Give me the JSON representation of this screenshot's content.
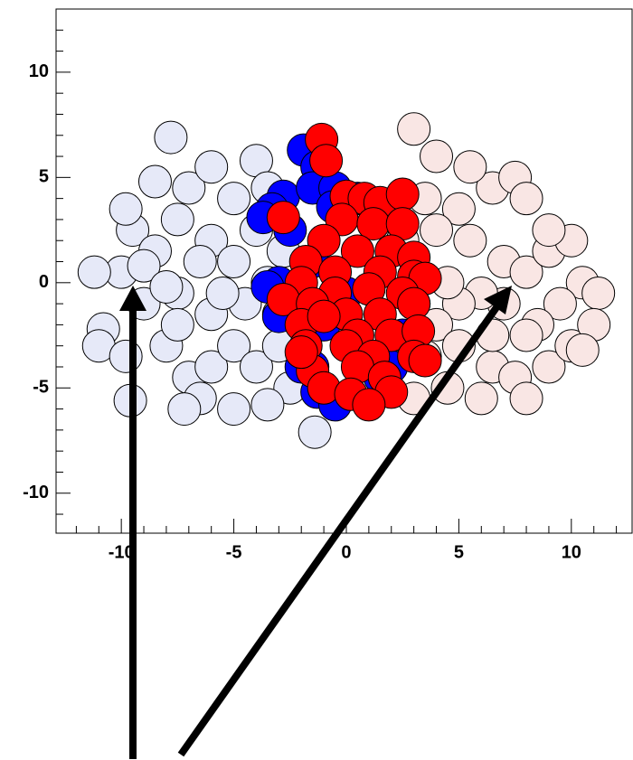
{
  "chart_data": {
    "type": "scatter",
    "xlim": [
      -12.9,
      12.7
    ],
    "ylim": [
      -11.9,
      13
    ],
    "xticks": [
      -10,
      -5,
      0,
      5,
      10
    ],
    "yticks": [
      -10,
      -5,
      0,
      5,
      10
    ],
    "xminorticks": [
      -12,
      -11,
      -9,
      -8,
      -7,
      -6,
      -4,
      -3,
      -2,
      -1,
      1,
      2,
      3,
      4,
      6,
      7,
      8,
      9,
      11,
      12
    ],
    "yminorticks": [
      -11,
      -9,
      -8,
      -7,
      -6,
      -4,
      -3,
      -2,
      -1,
      1,
      2,
      3,
      4,
      6,
      7,
      8,
      9,
      11,
      12
    ],
    "series": [
      {
        "color": "#e6e9f8",
        "x": [
          -9.5,
          -8.5,
          -7.5,
          -6,
          -5,
          -4,
          -3.5,
          -4.5,
          -6,
          -7.5,
          -9,
          -10,
          -11.2,
          -10.8,
          -11,
          -9.8,
          -8,
          -7,
          -7.5,
          -6,
          -5,
          -4,
          -3,
          -2.5,
          -3.5,
          -5,
          -6.5,
          -7.2,
          -9.6,
          -8.5,
          -7,
          -6,
          -5,
          -4,
          -3.5,
          -7.8,
          -9,
          -8,
          -5.5,
          -3,
          -1.4,
          -2.8,
          -6.5,
          -9.8
        ],
        "y": [
          2.5,
          1.5,
          3,
          2,
          1,
          2.5,
          0,
          -1,
          -1.5,
          -0.5,
          -1,
          0.5,
          0.5,
          -2.2,
          -3,
          -3.5,
          -3,
          -4.5,
          -2,
          -4,
          -3,
          -4,
          -3,
          -5,
          -5.8,
          -6,
          -5.5,
          -6,
          -5.6,
          4.8,
          4.5,
          5.5,
          4,
          5.8,
          4.5,
          6.9,
          0.8,
          -0.2,
          -0.5,
          -1.5,
          -7.1,
          1.5,
          1,
          3.5
        ]
      },
      {
        "color": "#f9e6e4",
        "x": [
          3.5,
          5,
          6.5,
          7.5,
          8,
          4,
          5.5,
          7,
          8,
          9,
          10,
          10.5,
          11.2,
          9.5,
          8.5,
          7,
          6,
          5,
          4,
          3.5,
          5,
          6.5,
          7.5,
          9,
          10,
          11,
          8,
          6,
          4.5,
          3,
          4,
          3,
          5.5,
          9,
          6.5,
          4.5,
          2.5,
          3,
          8,
          10.5
        ],
        "y": [
          4,
          3.5,
          4.5,
          5,
          4,
          2.5,
          2,
          1,
          0.5,
          1.5,
          2,
          0,
          -0.5,
          -1,
          -2,
          -1,
          -0.5,
          -1,
          -2,
          -3.5,
          -3,
          -4,
          -4.5,
          -4,
          -3,
          -2,
          -5.5,
          -5.5,
          -5,
          -5.5,
          6,
          7.3,
          5.5,
          2.5,
          -2.5,
          0,
          2,
          -1,
          -2.5,
          -3.2
        ]
      },
      {
        "color": "#0000ff",
        "x": [
          -1.9,
          -1.3,
          -2.8,
          -3.3,
          -2.5,
          -1.5,
          -0.5,
          0.5,
          -3,
          -3.5,
          -2.5,
          -3,
          -1.5,
          -1,
          -1.5,
          -2,
          -1.3,
          -0.5,
          1.5,
          2,
          2.5,
          0,
          -1.9,
          -0.6,
          -3.7
        ],
        "y": [
          6.3,
          5.5,
          4.1,
          3.5,
          2.5,
          4.5,
          4.5,
          4,
          0,
          -0.2,
          -0.8,
          -1.6,
          1,
          -2,
          -4,
          -4,
          -5.2,
          -5.8,
          -4.5,
          -4,
          -2.5,
          -0.5,
          -1.5,
          3.6,
          3.1
        ]
      },
      {
        "color": "#ff0000",
        "x": [
          -1.1,
          -0.9,
          -2.8,
          0,
          0.8,
          1.5,
          2.5,
          -0.2,
          1.2,
          2.5,
          -1,
          0.5,
          2,
          3,
          -1.8,
          -0.5,
          1.5,
          3,
          3.5,
          -2,
          -0.5,
          1,
          2.5,
          -2.8,
          -1.5,
          0,
          1.5,
          3,
          -2,
          -1,
          0.5,
          2,
          3.2,
          -1.8,
          0,
          1.2,
          3,
          3.5,
          -1.5,
          0.5,
          1.7,
          -1,
          0.2,
          2,
          1,
          -2
        ],
        "y": [
          6.8,
          5.8,
          3.1,
          4.1,
          4,
          3.8,
          4.2,
          3,
          2.8,
          2.8,
          2,
          1.5,
          1.5,
          1.2,
          1,
          0.5,
          0.5,
          0.3,
          0.2,
          0,
          -0.5,
          -0.3,
          -0.5,
          -0.8,
          -1,
          -1.5,
          -1.5,
          -1,
          -2,
          -1.6,
          -2.5,
          -2.5,
          -2.3,
          -3,
          -3,
          -3.5,
          -3.5,
          -3.7,
          -4.2,
          -4,
          -4.5,
          -5,
          -5.3,
          -5.2,
          -5.8,
          -3.3
        ]
      }
    ]
  }
}
